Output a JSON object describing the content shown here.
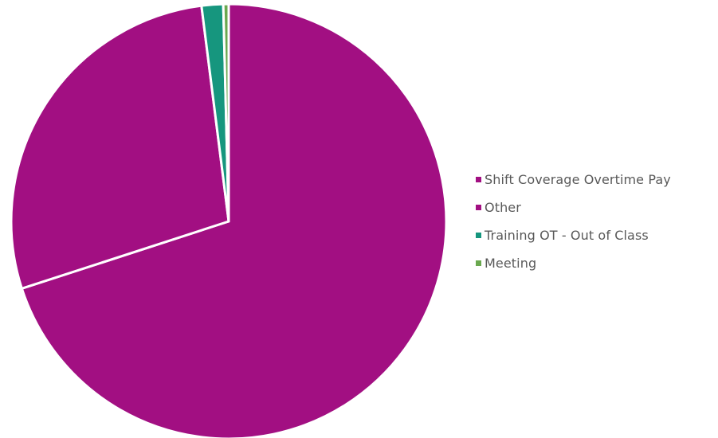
{
  "chart_data": {
    "type": "pie",
    "title": "",
    "legend_position": "right",
    "slices": [
      {
        "label": "Shift Coverage Overtime Pay",
        "value": 70.0,
        "color": "#A20F82"
      },
      {
        "label": "Other",
        "value": 28.0,
        "color": "#A20F82"
      },
      {
        "label": "Training OT - Out of Class",
        "value": 1.6,
        "color": "#16967E"
      },
      {
        "label": "Meeting",
        "value": 0.4,
        "color": "#6AA84F"
      }
    ]
  }
}
